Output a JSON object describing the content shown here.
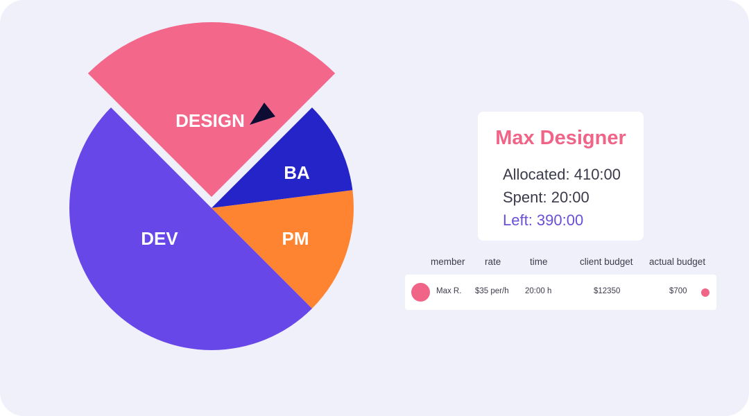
{
  "chart_data": {
    "type": "pie",
    "title": "",
    "slices": [
      {
        "label": "DESIGN",
        "value": 25,
        "color": "#f2678a",
        "exploded": true
      },
      {
        "label": "BA",
        "value": 10.5,
        "color": "#2424c8",
        "exploded": false
      },
      {
        "label": "PM",
        "value": 14.5,
        "color": "#ff8431",
        "exploded": false
      },
      {
        "label": "DEV",
        "value": 50,
        "color": "#6847e8",
        "exploded": false
      }
    ],
    "start_angle_deg": -45
  },
  "cursor": {
    "icon": "cursor-arrow-icon",
    "color": "#0d0d33"
  },
  "member_card": {
    "name": "Max Designer",
    "allocated": "Allocated: 410:00",
    "spent": "Spent: 20:00",
    "left": "Left: 390:00"
  },
  "table": {
    "headers": {
      "member": "member",
      "rate": "rate",
      "time": "time",
      "client_budget": "client budget",
      "actual_budget": "actual budget"
    },
    "rows": [
      {
        "member": "Max R.",
        "rate": "$35 per/h",
        "time": "20:00 h",
        "client_budget": "$12350",
        "actual_budget": "$700",
        "color": "#ef6487"
      }
    ]
  }
}
